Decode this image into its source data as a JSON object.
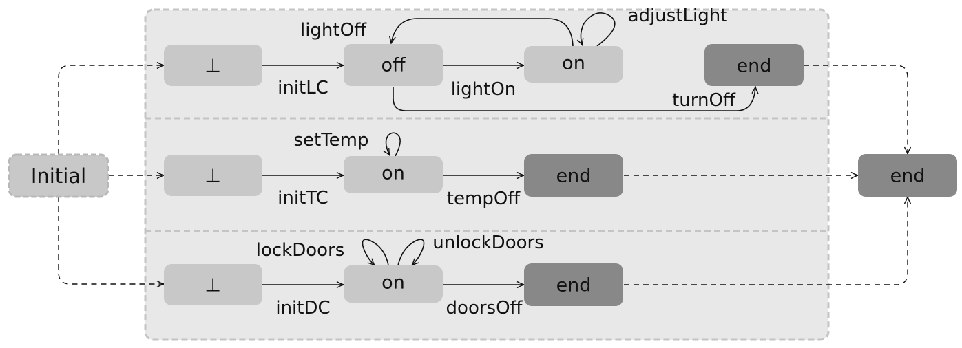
{
  "colors": {
    "region_fill": "#e8e8e8",
    "region_border": "#c4c4c4",
    "state_light": "#c8c8c8",
    "state_dark": "#888888",
    "line": "#111111"
  },
  "initial": {
    "label": "Initial"
  },
  "final": {
    "label": "end"
  },
  "regions": [
    {
      "start": "⊥",
      "init_label": "initLC",
      "s1": "off",
      "s2": "on",
      "end": "end",
      "light_on": "lightOn",
      "light_off": "lightOff",
      "adjust_light": "adjustLight",
      "turn_off": "turnOff"
    },
    {
      "start": "⊥",
      "init_label": "initTC",
      "s1": "on",
      "end": "end",
      "set_temp": "setTemp",
      "temp_off": "tempOff"
    },
    {
      "start": "⊥",
      "init_label": "initDC",
      "s1": "on",
      "end": "end",
      "lock_doors": "lockDoors",
      "unlock_doors": "unlockDoors",
      "doors_off": "doorsOff"
    }
  ]
}
